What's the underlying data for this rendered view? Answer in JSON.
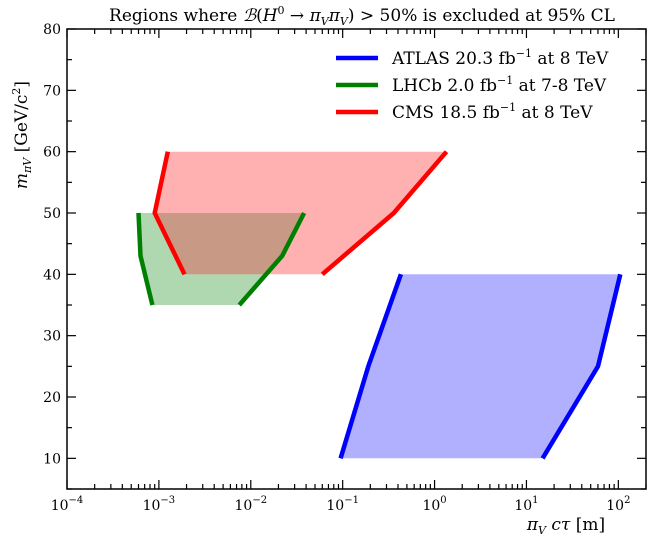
{
  "chart_data": {
    "type": "area",
    "title": "Regions where ℬ(H⁰ → πVπV) > 50% is excluded at 95% CL",
    "title_parts": {
      "prefix": "Regions where ",
      "calB": "ℬ",
      "paren_open": "(",
      "H": "H",
      "H_sup": "0",
      "arrow": " → ",
      "pi1": "π",
      "pi1_sub": "V",
      "pi2": "π",
      "pi2_sub": "V",
      "paren_close": ") > 50%",
      "suffix": " is excluded at 95% CL"
    },
    "xlabel": "πV cτ [m]",
    "xlabel_parts": {
      "pi": "π",
      "pi_sub": "V",
      "ctau": " cτ",
      "unit": " [m]"
    },
    "ylabel": "mπV [GeV/c²]",
    "ylabel_parts": {
      "m": "m",
      "sub": "πV",
      "unit": " [GeV/c",
      "unit_sup": "2",
      "unit_close": "]"
    },
    "xscale": "log",
    "xlim": [
      0.0001,
      200
    ],
    "ylim": [
      5,
      80
    ],
    "x_ticks": [
      {
        "value": 0.0001,
        "base": "10",
        "exp": "−4"
      },
      {
        "value": 0.001,
        "base": "10",
        "exp": "−3"
      },
      {
        "value": 0.01,
        "base": "10",
        "exp": "−2"
      },
      {
        "value": 0.1,
        "base": "10",
        "exp": "−1"
      },
      {
        "value": 1,
        "base": "10",
        "exp": "0"
      },
      {
        "value": 10,
        "base": "10",
        "exp": "1"
      },
      {
        "value": 100,
        "base": "10",
        "exp": "2"
      }
    ],
    "y_ticks": [
      "10",
      "20",
      "30",
      "40",
      "50",
      "60",
      "70",
      "80"
    ],
    "grid": false,
    "legend_position": "top-right",
    "series": [
      {
        "name": "ATLAS 20.3 fb⁻¹ at 8 TeV",
        "legend": {
          "exp": "ATLAS",
          "lumi": " 20.3 fb",
          "sup": "−1",
          "energy": " at 8 TeV"
        },
        "color": "#0000ff",
        "fill": "#b0b0ff",
        "left_edge": [
          [
            0.095,
            10
          ],
          [
            0.19,
            25
          ],
          [
            0.43,
            40
          ]
        ],
        "right_edge": [
          [
            15,
            10
          ],
          [
            60,
            25
          ],
          [
            105,
            40
          ]
        ]
      },
      {
        "name": "LHCb 2.0 fb⁻¹ at 7-8 TeV",
        "legend": {
          "exp": "LHCb",
          "lumi": " 2.0 fb",
          "sup": "−1",
          "energy": " at 7-8 TeV"
        },
        "color": "#008000",
        "fill": "#b0d8b0",
        "left_edge": [
          [
            0.00085,
            35
          ],
          [
            0.00063,
            43
          ],
          [
            0.0006,
            50
          ]
        ],
        "right_edge": [
          [
            0.0075,
            35
          ],
          [
            0.022,
            43
          ],
          [
            0.038,
            50
          ]
        ]
      },
      {
        "name": "CMS 18.5 fb⁻¹ at 8 TeV",
        "legend": {
          "exp": "CMS",
          "lumi": " 18.5 fb",
          "sup": "−1",
          "energy": " at 8 TeV"
        },
        "color": "#ff0000",
        "fill": "#ffb0b0",
        "left_edge": [
          [
            0.0019,
            40
          ],
          [
            0.0009,
            50
          ],
          [
            0.00125,
            60
          ]
        ],
        "right_edge": [
          [
            0.06,
            40
          ],
          [
            0.36,
            50
          ],
          [
            1.35,
            60
          ]
        ]
      }
    ]
  },
  "colors": {
    "overlap": "#c89a86",
    "axis": "#000000"
  }
}
